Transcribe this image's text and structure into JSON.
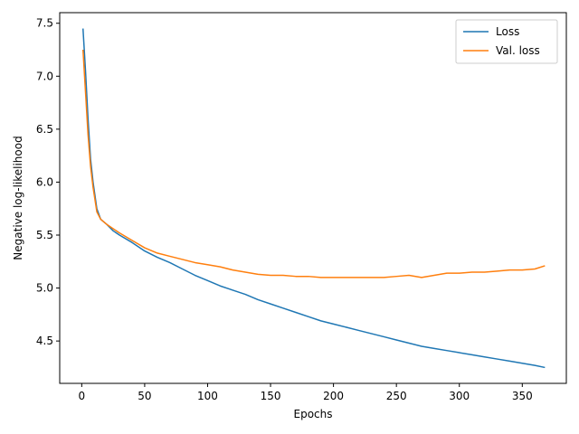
{
  "chart_data": {
    "type": "line",
    "title": "",
    "xlabel": "Epochs",
    "ylabel": "Negative log-likelihood",
    "xlim": [
      -17.5,
      385
    ],
    "ylim": [
      4.1,
      7.6
    ],
    "xticks": [
      0,
      50,
      100,
      150,
      200,
      250,
      300,
      350
    ],
    "yticks": [
      4.5,
      5.0,
      5.5,
      6.0,
      6.5,
      7.0,
      7.5
    ],
    "grid": false,
    "legend": "top-right",
    "series": [
      {
        "name": "Loss",
        "color": "#1f77b4",
        "x": [
          1,
          3,
          5,
          7,
          9,
          12,
          15,
          20,
          25,
          30,
          40,
          50,
          60,
          70,
          80,
          90,
          100,
          110,
          120,
          130,
          140,
          150,
          160,
          170,
          180,
          190,
          200,
          210,
          220,
          230,
          240,
          250,
          260,
          270,
          280,
          290,
          300,
          310,
          320,
          330,
          340,
          350,
          360,
          368
        ],
        "values": [
          7.45,
          7.05,
          6.6,
          6.22,
          6.0,
          5.75,
          5.65,
          5.6,
          5.54,
          5.5,
          5.43,
          5.35,
          5.29,
          5.24,
          5.18,
          5.12,
          5.07,
          5.02,
          4.98,
          4.94,
          4.89,
          4.85,
          4.81,
          4.77,
          4.73,
          4.69,
          4.66,
          4.63,
          4.6,
          4.57,
          4.54,
          4.51,
          4.48,
          4.45,
          4.43,
          4.41,
          4.39,
          4.37,
          4.35,
          4.33,
          4.31,
          4.29,
          4.27,
          4.25
        ]
      },
      {
        "name": "Val. loss",
        "color": "#ff7f0e",
        "x": [
          1,
          3,
          5,
          7,
          9,
          12,
          15,
          20,
          25,
          30,
          40,
          50,
          60,
          70,
          80,
          90,
          100,
          110,
          120,
          130,
          140,
          150,
          160,
          170,
          180,
          190,
          200,
          210,
          220,
          230,
          240,
          250,
          260,
          270,
          280,
          290,
          300,
          310,
          320,
          330,
          340,
          350,
          360,
          368
        ],
        "values": [
          7.25,
          6.85,
          6.45,
          6.15,
          5.95,
          5.72,
          5.65,
          5.6,
          5.56,
          5.52,
          5.45,
          5.38,
          5.33,
          5.3,
          5.27,
          5.24,
          5.22,
          5.2,
          5.17,
          5.15,
          5.13,
          5.12,
          5.12,
          5.11,
          5.11,
          5.1,
          5.1,
          5.1,
          5.1,
          5.1,
          5.1,
          5.11,
          5.12,
          5.1,
          5.12,
          5.14,
          5.14,
          5.15,
          5.15,
          5.16,
          5.17,
          5.17,
          5.18,
          5.21
        ]
      }
    ]
  }
}
